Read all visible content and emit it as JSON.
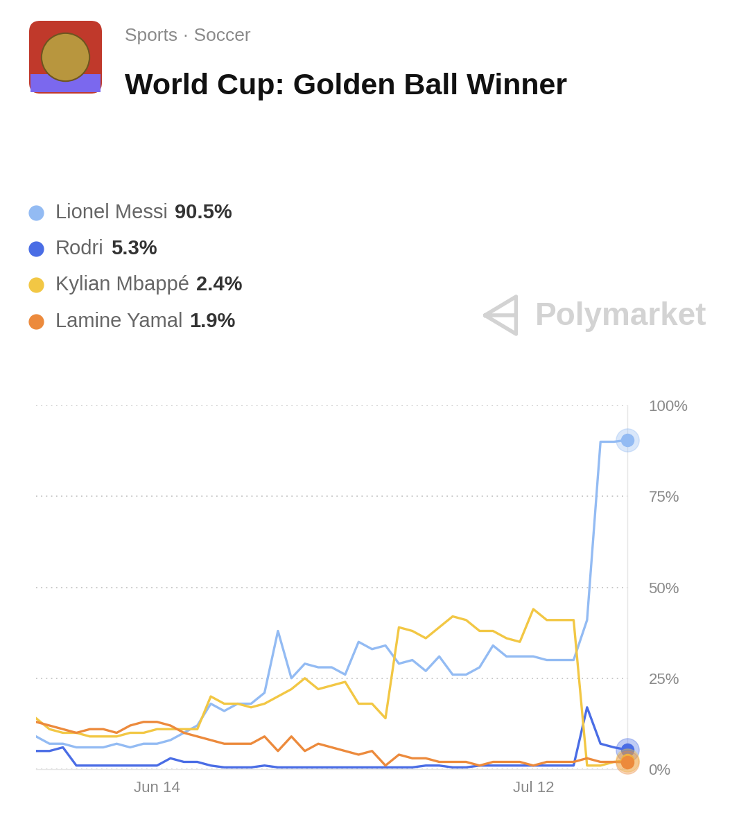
{
  "chart_data": {
    "type": "line",
    "subtitle": "Sports · Soccer",
    "title": "World Cup: Golden Ball Winner",
    "annotation": "Polymarket",
    "categories": [
      null,
      null,
      null,
      null,
      null,
      null,
      null,
      null,
      null,
      "Jun 14",
      null,
      null,
      null,
      null,
      null,
      null,
      null,
      null,
      null,
      null,
      null,
      null,
      null,
      null,
      null,
      null,
      null,
      null,
      null,
      null,
      null,
      null,
      null,
      null,
      null,
      null,
      null,
      "Jul 12",
      null,
      null,
      null,
      null,
      null,
      null,
      null
    ],
    "series": [
      {
        "name": "Lionel Messi",
        "color": "#93bbf3",
        "value_label": "90.5%",
        "values": [
          9,
          7,
          7,
          6,
          6,
          6,
          7,
          6,
          7,
          7,
          8,
          10,
          12,
          18,
          16,
          18,
          18,
          21,
          38,
          25,
          29,
          28,
          28,
          26,
          35,
          33,
          34,
          29,
          30,
          27,
          31,
          26,
          26,
          28,
          34,
          31,
          31,
          31,
          30,
          30,
          30,
          41,
          90,
          90,
          90.5
        ]
      },
      {
        "name": "Rodri",
        "color": "#4a6de5",
        "value_label": "5.3%",
        "values": [
          5,
          5,
          6,
          1,
          1,
          1,
          1,
          1,
          1,
          1,
          3,
          2,
          2,
          1,
          0.5,
          0.5,
          0.5,
          1,
          0.5,
          0.5,
          0.5,
          0.5,
          0.5,
          0.5,
          0.5,
          0.5,
          0.5,
          0.5,
          0.5,
          1,
          1,
          0.5,
          0.5,
          1,
          1,
          1,
          1,
          1,
          1,
          1,
          1,
          17,
          7,
          6,
          5.3
        ]
      },
      {
        "name": "Kylian Mbappé",
        "color": "#f2c744",
        "value_label": "2.4%",
        "values": [
          14,
          11,
          10,
          10,
          9,
          9,
          9,
          10,
          10,
          11,
          11,
          11,
          11,
          20,
          18,
          18,
          17,
          18,
          20,
          22,
          25,
          22,
          23,
          24,
          18,
          18,
          14,
          39,
          38,
          36,
          39,
          42,
          41,
          38,
          38,
          36,
          35,
          44,
          41,
          41,
          41,
          1,
          1,
          2,
          2.4
        ]
      },
      {
        "name": "Lamine Yamal",
        "color": "#ec8a3c",
        "value_label": "1.9%",
        "values": [
          13,
          12,
          11,
          10,
          11,
          11,
          10,
          12,
          13,
          13,
          12,
          10,
          9,
          8,
          7,
          7,
          7,
          9,
          5,
          9,
          5,
          7,
          6,
          5,
          4,
          5,
          1,
          4,
          3,
          3,
          2,
          2,
          2,
          1,
          2,
          2,
          2,
          1,
          2,
          2,
          2,
          3,
          2,
          2,
          1.9
        ]
      }
    ],
    "ylim": [
      0,
      100
    ],
    "yticks": [
      {
        "value": 0,
        "label": "0%"
      },
      {
        "value": 25,
        "label": "25%"
      },
      {
        "value": 50,
        "label": "50%"
      },
      {
        "value": 75,
        "label": "75%"
      },
      {
        "value": 100,
        "label": "100%"
      }
    ],
    "grid": true
  }
}
